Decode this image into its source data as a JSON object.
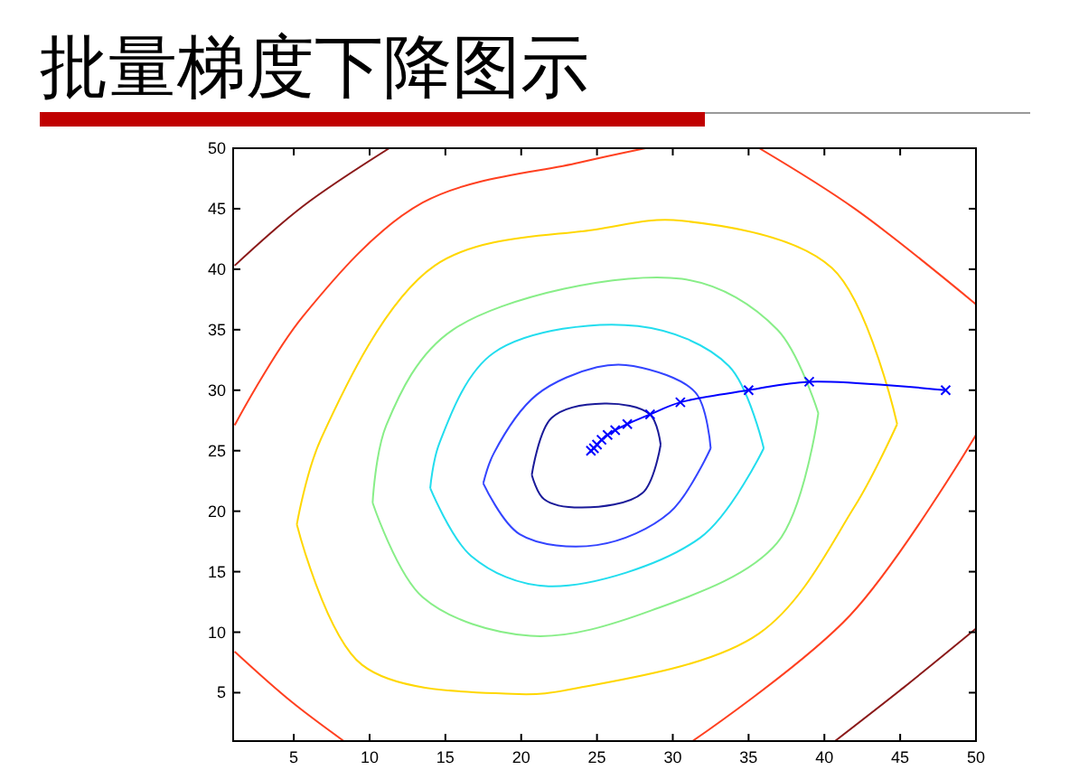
{
  "chart_data": {
    "type": "line",
    "title": "批量梯度下降图示",
    "xlim": [
      1,
      50
    ],
    "ylim": [
      1,
      50
    ],
    "xticks": [
      5,
      10,
      15,
      20,
      25,
      30,
      35,
      40,
      45,
      50
    ],
    "yticks": [
      5,
      10,
      15,
      20,
      25,
      30,
      35,
      40,
      45,
      50
    ],
    "marker": "none",
    "line_style": "solid",
    "series": [
      {
        "color": "#1a1a99",
        "x": [
          20.7,
          21.5,
          24,
          28,
          29.2,
          null,
          29.2,
          28.5,
          25.5,
          22,
          20.7
        ],
        "values": [
          23,
          21,
          20.3,
          21.5,
          25.5,
          null,
          25.5,
          28,
          28.9,
          27.7,
          23
        ]
      },
      {
        "color": "#3344ff",
        "x": [
          17.5,
          19.9,
          25,
          29.8,
          32.5,
          null,
          32.5,
          31.5,
          27.4,
          25,
          21,
          18.2,
          17.5
        ],
        "values": [
          22.3,
          18.1,
          17.2,
          19.9,
          25.2,
          null,
          25.2,
          29.8,
          32,
          31.9,
          29.6,
          24.8,
          22.3
        ]
      },
      {
        "color": "#22ddee",
        "x": [
          14,
          16.7,
          21.8,
          31.8,
          36,
          null,
          36,
          33.7,
          27.7,
          18.2,
          14.6,
          14
        ],
        "values": [
          21.9,
          16.3,
          13.8,
          17.8,
          25.2,
          null,
          25.2,
          32,
          35.3,
          33.1,
          25.6,
          21.9
        ]
      },
      {
        "color": "#88ee88",
        "x": [
          10.2,
          13.5,
          20.6,
          28.6,
          36.9,
          39.6,
          null,
          39.6,
          36.9,
          30.6,
          15.5,
          11.1,
          10.2
        ],
        "values": [
          20.7,
          12.9,
          9.7,
          11.8,
          17.4,
          28.1,
          null,
          28.1,
          35,
          39.2,
          35,
          27.1,
          20.7
        ]
      },
      {
        "color": "#ffd700",
        "x": [
          5.2,
          9.5,
          19.4,
          23.8,
          35.7,
          42,
          44.8,
          null,
          44.8,
          40.5,
          30.6,
          25,
          14.3,
          6.8,
          5.2
        ],
        "values": [
          18.9,
          7.3,
          4.9,
          5.4,
          9.9,
          20.4,
          27.2,
          null,
          27.2,
          40.1,
          44,
          43.3,
          40.3,
          26,
          18.9
        ]
      },
      {
        "color": "#ff4020",
        "x": [
          1.1,
          5.6,
          13.5,
          23.8,
          28.2,
          null,
          35.7,
          42,
          50,
          null,
          50,
          41.7,
          31.3,
          null,
          1.1,
          4.8,
          8.3
        ],
        "values": [
          27.1,
          36.1,
          45.5,
          48.8,
          50,
          null,
          50,
          45,
          37.1,
          null,
          26.3,
          11.4,
          1,
          null,
          8.4,
          4.3,
          1
        ]
      },
      {
        "color": "#8b1a1a",
        "x": [
          1.1,
          5.6,
          11.3,
          null,
          50,
          45.2,
          40.7
        ],
        "values": [
          40.3,
          45.2,
          50,
          null,
          10.3,
          5.4,
          1
        ]
      },
      {
        "color": "#0000ff",
        "marker": "cross",
        "x": [
          48,
          39,
          35,
          30.5,
          28.5,
          27,
          26.2,
          25.7,
          25.3,
          25,
          24.8,
          24.6
        ],
        "values": [
          30,
          30.7,
          30,
          29,
          28,
          27.2,
          26.7,
          26.3,
          25.9,
          25.5,
          25.2,
          25
        ]
      }
    ]
  }
}
